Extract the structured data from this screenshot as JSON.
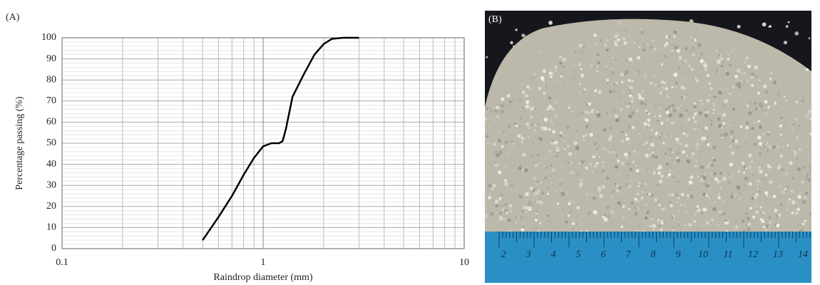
{
  "chart_data": {
    "type": "line",
    "panel_label": "(A)",
    "x_label": "Raindrop diameter (mm)",
    "y_label": "Percentage passing (%)",
    "log_x": true,
    "grid": true,
    "color": "#000000",
    "xlim": [
      0.1,
      10
    ],
    "xticks": [
      0.1,
      1,
      10
    ],
    "xminorticks": [
      0.2,
      0.3,
      0.4,
      0.5,
      0.6,
      0.7,
      0.8,
      0.9,
      2,
      3,
      4,
      5,
      6,
      7,
      8,
      9
    ],
    "ylim": [
      0,
      100
    ],
    "yticks": [
      0,
      10,
      20,
      30,
      40,
      50,
      60,
      70,
      80,
      90,
      100
    ],
    "yminorticks": [
      2,
      4,
      6,
      8,
      12,
      14,
      16,
      18,
      22,
      24,
      26,
      28,
      32,
      34,
      36,
      38,
      42,
      44,
      46,
      48,
      52,
      54,
      56,
      58,
      62,
      64,
      66,
      68,
      72,
      74,
      76,
      78,
      82,
      84,
      86,
      88,
      92,
      94,
      96,
      98
    ],
    "x": [
      0.5,
      0.6,
      0.7,
      0.8,
      0.9,
      1.0,
      1.1,
      1.2,
      1.25,
      1.3,
      1.4,
      1.6,
      1.8,
      2.0,
      2.2,
      2.5,
      3.0
    ],
    "values": [
      4,
      15,
      25,
      35,
      43,
      48.5,
      50,
      50,
      51,
      57,
      72,
      83,
      92,
      97,
      99.5,
      100,
      100
    ]
  },
  "photo": {
    "label": "(B)",
    "ruler_labels": [
      "2",
      "3",
      "4",
      "5",
      "6",
      "7",
      "8",
      "9",
      "10",
      "11",
      "12",
      "13",
      "14"
    ]
  }
}
